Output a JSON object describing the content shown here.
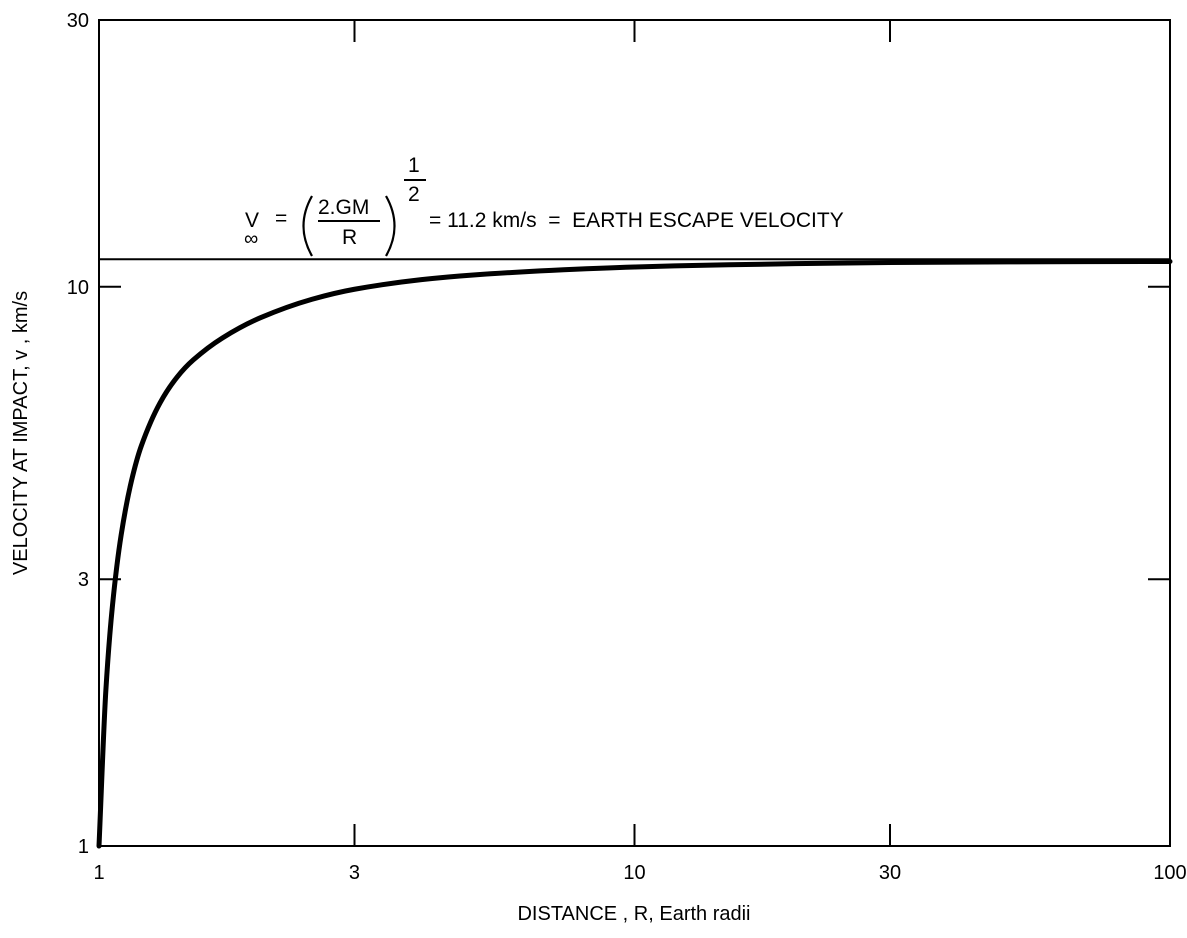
{
  "chart_data": {
    "type": "line",
    "title": "",
    "xlabel": "DISTANCE , R, Earth radii",
    "ylabel": "VELOCITY AT IMPACT, v , km/s",
    "xscale": "log",
    "yscale": "log",
    "xlim": [
      1,
      100
    ],
    "ylim": [
      1,
      30
    ],
    "xticks": [
      1,
      3,
      10,
      30,
      100
    ],
    "xtick_labels": [
      "1",
      "3",
      "10",
      "30",
      "100"
    ],
    "yticks": [
      1,
      3,
      10,
      30
    ],
    "ytick_labels": [
      "1",
      "3",
      "10",
      "30"
    ],
    "grid": false,
    "series": [
      {
        "x": [
          1.0,
          1.03,
          1.06,
          1.1,
          1.15,
          1.2,
          1.3,
          1.4,
          1.5,
          1.7,
          2.0,
          2.5,
          3.0,
          4.0,
          5.0,
          7.0,
          10.0,
          15.0,
          20.0,
          30.0,
          50.0,
          70.0,
          100.0
        ],
        "y": [
          1.0,
          1.9,
          2.7,
          3.6,
          4.5,
          5.2,
          6.2,
          6.9,
          7.4,
          8.1,
          8.8,
          9.5,
          9.9,
          10.3,
          10.5,
          10.7,
          10.85,
          10.95,
          11.0,
          11.05,
          11.08,
          11.09,
          11.1
        ]
      }
    ],
    "reference_line": {
      "y": 11.2,
      "label": {
        "v_symbol": "V",
        "v_subscript": "∞",
        "equals": "=",
        "numerator": "2.GM",
        "denominator": "R",
        "exponent_numerator": "1",
        "exponent_denominator": "2",
        "rhs": "= 11.2 km/s  =  EARTH ESCAPE VELOCITY"
      }
    }
  }
}
